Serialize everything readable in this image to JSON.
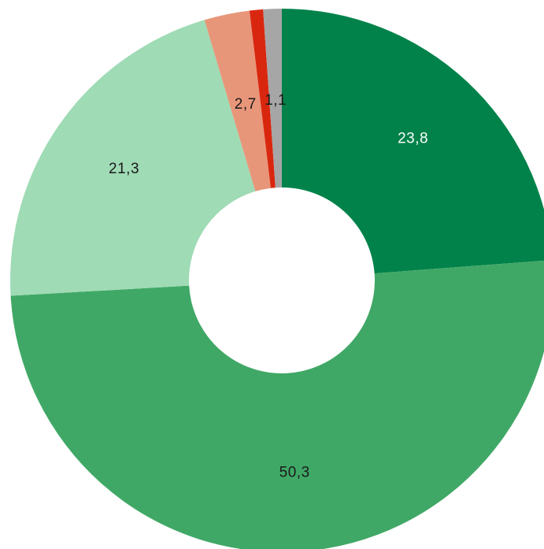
{
  "chart_data": {
    "type": "pie",
    "donut": true,
    "title": "",
    "legend": "none",
    "slices": [
      {
        "value": 23.8,
        "label": "23,8",
        "color": "#00824a",
        "label_color": "#ffffff"
      },
      {
        "value": 50.3,
        "label": "50,3",
        "color": "#40a866",
        "label_color": "#1a1a1a"
      },
      {
        "value": 21.3,
        "label": "21,3",
        "color": "#9fdbb5",
        "label_color": "#1a1a1a"
      },
      {
        "value": 2.7,
        "label": "2,7",
        "color": "#e8967a",
        "label_color": "#1a1a1a"
      },
      {
        "value": 0.8,
        "label": "",
        "color": "#d9270f",
        "label_color": "#1a1a1a"
      },
      {
        "value": 1.1,
        "label": "1,1",
        "color": "#a6a6a6",
        "label_color": "#1a1a1a"
      }
    ]
  }
}
